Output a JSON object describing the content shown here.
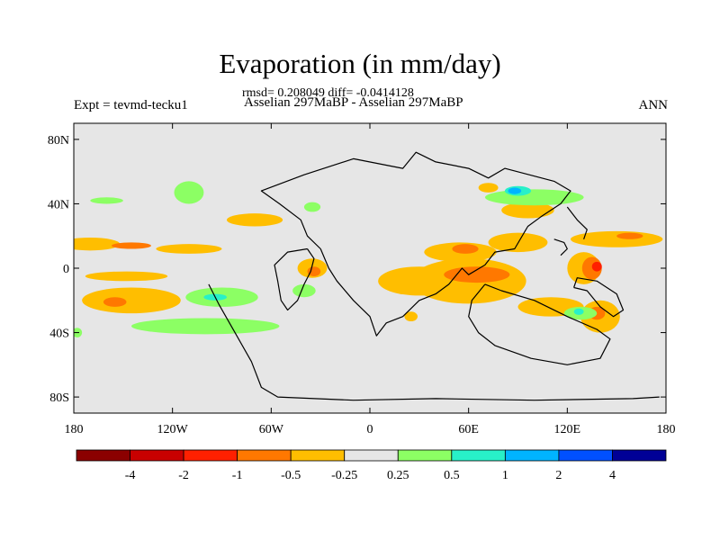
{
  "header": {
    "title": "Evaporation (in mm/day)",
    "stats": "rmsd= 0.208049 diff= -0.0414128",
    "experiment": "Expt = tevmd-tecku1",
    "comparison": "Asselian 297MaBP - Asselian 297MaBP",
    "season": "ANN"
  },
  "chart_data": {
    "type": "heatmap",
    "title": "Evaporation (in mm/day)",
    "subtitle": "rmsd= 0.208049 diff= -0.0414128",
    "projection": "cylindrical equidistant",
    "xlim": [
      -180,
      180
    ],
    "ylim": [
      -90,
      90
    ],
    "x_ticks": [
      {
        "value": -180,
        "label": "180"
      },
      {
        "value": -120,
        "label": "120W"
      },
      {
        "value": -60,
        "label": "60W"
      },
      {
        "value": 0,
        "label": "0"
      },
      {
        "value": 60,
        "label": "60E"
      },
      {
        "value": 120,
        "label": "120E"
      },
      {
        "value": 180,
        "label": "180"
      }
    ],
    "y_ticks": [
      {
        "value": 80,
        "label": "80N"
      },
      {
        "value": 40,
        "label": "40N"
      },
      {
        "value": 0,
        "label": "0"
      },
      {
        "value": -40,
        "label": "40S"
      },
      {
        "value": -80,
        "label": "80S"
      }
    ],
    "colorbar": {
      "colors": [
        "#8b0000",
        "#c80000",
        "#ff2000",
        "#ff7800",
        "#ffbe00",
        "#e6e6e6",
        "#8cff64",
        "#28f0c8",
        "#00b4ff",
        "#0050ff",
        "#000096"
      ],
      "labels": [
        "-4",
        "-2",
        "-1",
        "-0.5",
        "-0.25",
        "0.25",
        "0.5",
        "1",
        "2",
        "4"
      ],
      "neutral_color": "#e6e6e6"
    },
    "anomaly_regions": [
      {
        "lon": -170,
        "lat": 15,
        "rlon": 18,
        "rlat": 4,
        "level": -0.25
      },
      {
        "lon": -145,
        "lat": 14,
        "rlon": 12,
        "rlat": 2,
        "level": -0.5
      },
      {
        "lon": -110,
        "lat": 12,
        "rlon": 20,
        "rlat": 3,
        "level": -0.25
      },
      {
        "lon": -145,
        "lat": -20,
        "rlon": 30,
        "rlat": 8,
        "level": -0.25
      },
      {
        "lon": -155,
        "lat": -21,
        "rlon": 7,
        "rlat": 3,
        "level": -0.5
      },
      {
        "lon": -148,
        "lat": -5,
        "rlon": 25,
        "rlat": 3,
        "level": -0.25
      },
      {
        "lon": -160,
        "lat": 42,
        "rlon": 10,
        "rlat": 2,
        "level": 0.25
      },
      {
        "lon": -110,
        "lat": 47,
        "rlon": 9,
        "rlat": 7,
        "level": 0.25
      },
      {
        "lon": -70,
        "lat": 30,
        "rlon": 17,
        "rlat": 4,
        "level": -0.25
      },
      {
        "lon": -90,
        "lat": -18,
        "rlon": 22,
        "rlat": 6,
        "level": 0.25
      },
      {
        "lon": -94,
        "lat": -18,
        "rlon": 7,
        "rlat": 2,
        "level": 0.5
      },
      {
        "lon": -100,
        "lat": -36,
        "rlon": 45,
        "rlat": 5,
        "level": 0.25
      },
      {
        "lon": -35,
        "lat": 0,
        "rlon": 9,
        "rlat": 6,
        "level": -0.25
      },
      {
        "lon": -34,
        "lat": -2,
        "rlon": 4,
        "rlat": 3,
        "level": -0.5
      },
      {
        "lon": -40,
        "lat": -14,
        "rlon": 7,
        "rlat": 4,
        "level": 0.25
      },
      {
        "lon": -35,
        "lat": 38,
        "rlon": 5,
        "rlat": 3,
        "level": 0.25
      },
      {
        "lon": 30,
        "lat": -8,
        "rlon": 25,
        "rlat": 9,
        "level": -0.25
      },
      {
        "lon": 60,
        "lat": -8,
        "rlon": 35,
        "rlat": 14,
        "level": -0.25
      },
      {
        "lon": 65,
        "lat": -4,
        "rlon": 20,
        "rlat": 5,
        "level": -0.5
      },
      {
        "lon": 55,
        "lat": 10,
        "rlon": 22,
        "rlat": 6,
        "level": -0.25
      },
      {
        "lon": 58,
        "lat": 12,
        "rlon": 8,
        "rlat": 3,
        "level": -0.5
      },
      {
        "lon": 90,
        "lat": 16,
        "rlon": 18,
        "rlat": 6,
        "level": -0.25
      },
      {
        "lon": 130,
        "lat": 0,
        "rlon": 10,
        "rlat": 10,
        "level": -0.25
      },
      {
        "lon": 135,
        "lat": 0,
        "rlon": 6,
        "rlat": 7,
        "level": -0.5
      },
      {
        "lon": 138,
        "lat": 1,
        "rlon": 3,
        "rlat": 3,
        "level": -1
      },
      {
        "lon": 140,
        "lat": -30,
        "rlon": 12,
        "rlat": 10,
        "level": -0.25
      },
      {
        "lon": 138,
        "lat": -28,
        "rlon": 5,
        "rlat": 4,
        "level": -0.5
      },
      {
        "lon": 110,
        "lat": -24,
        "rlon": 20,
        "rlat": 6,
        "level": -0.25
      },
      {
        "lon": 96,
        "lat": 36,
        "rlon": 16,
        "rlat": 5,
        "level": -0.25
      },
      {
        "lon": 100,
        "lat": 44,
        "rlon": 30,
        "rlat": 5,
        "level": 0.25
      },
      {
        "lon": 90,
        "lat": 48,
        "rlon": 8,
        "rlat": 3,
        "level": 0.5
      },
      {
        "lon": 88,
        "lat": 48,
        "rlon": 4,
        "rlat": 2,
        "level": 1
      },
      {
        "lon": 150,
        "lat": 18,
        "rlon": 28,
        "rlat": 5,
        "level": -0.25
      },
      {
        "lon": 158,
        "lat": 20,
        "rlon": 8,
        "rlat": 2,
        "level": -0.5
      },
      {
        "lon": 128,
        "lat": -28,
        "rlon": 10,
        "rlat": 4,
        "level": 0.25
      },
      {
        "lon": 127,
        "lat": -27,
        "rlon": 3,
        "rlat": 2,
        "level": 0.5
      },
      {
        "lon": -178,
        "lat": -40,
        "rlon": 3,
        "rlat": 3,
        "level": 0.25
      },
      {
        "lon": 72,
        "lat": 50,
        "rlon": 6,
        "rlat": 3,
        "level": -0.25
      },
      {
        "lon": 25,
        "lat": -30,
        "rlon": 4,
        "rlat": 3,
        "level": -0.25
      }
    ],
    "coastlines": [
      [
        [
          -98,
          -10
        ],
        [
          -92,
          -22
        ],
        [
          -82,
          -40
        ],
        [
          -72,
          -58
        ],
        [
          -66,
          -74
        ],
        [
          -56,
          -80
        ],
        [
          -10,
          -82
        ],
        [
          40,
          -81
        ],
        [
          100,
          -82
        ],
        [
          160,
          -81
        ],
        [
          176,
          -80
        ]
      ],
      [
        [
          -30,
          12
        ],
        [
          -38,
          20
        ],
        [
          -42,
          30
        ],
        [
          -55,
          40
        ],
        [
          -66,
          48
        ],
        [
          -40,
          58
        ],
        [
          -10,
          68
        ],
        [
          20,
          62
        ],
        [
          28,
          72
        ],
        [
          40,
          66
        ],
        [
          60,
          62
        ],
        [
          72,
          56
        ],
        [
          82,
          62
        ],
        [
          112,
          54
        ],
        [
          122,
          48
        ],
        [
          116,
          40
        ],
        [
          104,
          32
        ],
        [
          96,
          26
        ],
        [
          88,
          12
        ],
        [
          76,
          10
        ],
        [
          70,
          2
        ],
        [
          60,
          -4
        ],
        [
          56,
          0
        ],
        [
          48,
          -10
        ],
        [
          40,
          -16
        ],
        [
          30,
          -20
        ],
        [
          20,
          -30
        ],
        [
          10,
          -34
        ],
        [
          4,
          -42
        ],
        [
          0,
          -30
        ],
        [
          -10,
          -20
        ],
        [
          -20,
          -8
        ],
        [
          -25,
          0
        ],
        [
          -30,
          12
        ]
      ],
      [
        [
          70,
          -10
        ],
        [
          80,
          -14
        ],
        [
          100,
          -20
        ],
        [
          120,
          -30
        ],
        [
          138,
          -38
        ],
        [
          146,
          -44
        ],
        [
          140,
          -56
        ],
        [
          120,
          -60
        ],
        [
          98,
          -56
        ],
        [
          76,
          -48
        ],
        [
          66,
          -40
        ],
        [
          60,
          -30
        ],
        [
          62,
          -20
        ],
        [
          70,
          -10
        ]
      ],
      [
        [
          -38,
          12
        ],
        [
          -34,
          6
        ],
        [
          -36,
          -2
        ],
        [
          -40,
          -10
        ],
        [
          -44,
          -20
        ],
        [
          -50,
          -26
        ],
        [
          -54,
          -20
        ],
        [
          -56,
          -8
        ],
        [
          -58,
          2
        ],
        [
          -50,
          10
        ],
        [
          -38,
          12
        ]
      ],
      [
        [
          120,
          38
        ],
        [
          126,
          30
        ],
        [
          132,
          24
        ],
        [
          130,
          18
        ]
      ],
      [
        [
          112,
          18
        ],
        [
          118,
          16
        ],
        [
          120,
          12
        ],
        [
          116,
          8
        ]
      ],
      [
        [
          124,
          -12
        ],
        [
          132,
          -14
        ],
        [
          140,
          -24
        ],
        [
          148,
          -30
        ],
        [
          154,
          -26
        ],
        [
          150,
          -16
        ],
        [
          138,
          -8
        ],
        [
          126,
          -6
        ],
        [
          124,
          -12
        ]
      ]
    ]
  }
}
